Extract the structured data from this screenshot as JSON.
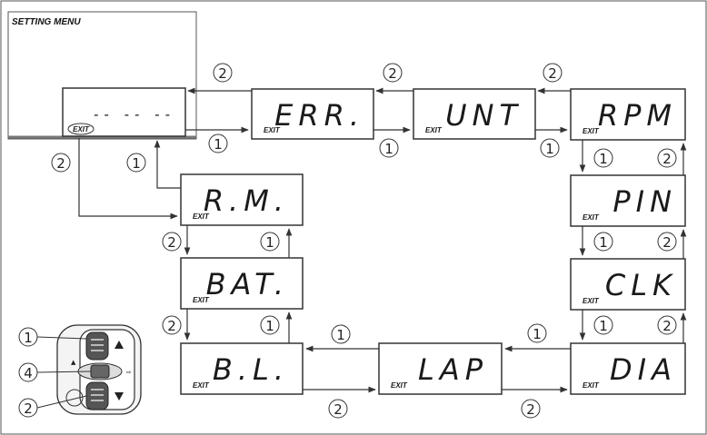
{
  "menu": {
    "title": "SETTING MENU",
    "main_display": "-- -- --",
    "main_exit": "EXIT"
  },
  "screens": {
    "err": {
      "text": "ERR.",
      "exit": "EXIT"
    },
    "unt": {
      "text": "UNT",
      "exit": "EXIT"
    },
    "rpm": {
      "text": "RPM",
      "exit": "EXIT"
    },
    "pin": {
      "text": "PIN",
      "exit": "EXIT"
    },
    "clk": {
      "text": "CLK",
      "exit": "EXIT"
    },
    "dia": {
      "text": "DIA",
      "exit": "EXIT"
    },
    "lap": {
      "text": "LAP",
      "exit": "EXIT"
    },
    "bl": {
      "text": "B.L.",
      "exit": "EXIT"
    },
    "bat": {
      "text": "BAT.",
      "exit": "EXIT"
    },
    "rm": {
      "text": "R.M.",
      "exit": "EXIT"
    }
  },
  "markers": {
    "one": "1",
    "two": "2",
    "four": "4"
  }
}
